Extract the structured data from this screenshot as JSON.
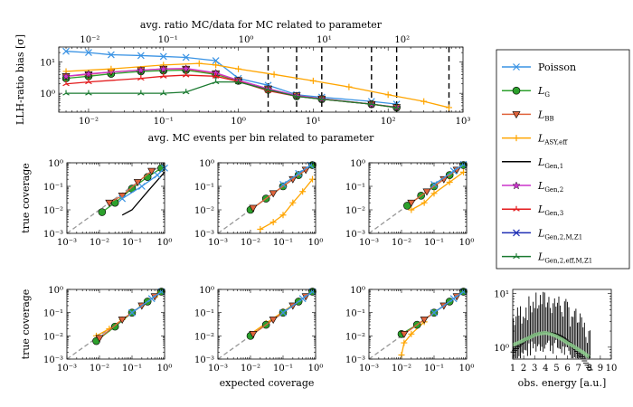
{
  "figure": {
    "legend": [
      {
        "name": "Poisson",
        "sub": "",
        "color": "#3a93e4",
        "marker": "x",
        "lead": ""
      },
      {
        "name": "L",
        "sub": "G",
        "color": "#2ca02c",
        "marker": "circle",
        "lead": ""
      },
      {
        "name": "L",
        "sub": "BB",
        "color": "#e0643c",
        "marker": "triangle-down",
        "lead": ""
      },
      {
        "name": "L",
        "sub": "ASY,eff",
        "color": "#ffa500",
        "marker": "plus",
        "lead": ""
      },
      {
        "name": "L",
        "sub": "Gen,1",
        "color": "#000000",
        "marker": "none",
        "lead": ""
      },
      {
        "name": "L",
        "sub": "Gen,2",
        "color": "#cc33cc",
        "marker": "star",
        "lead": ""
      },
      {
        "name": "L",
        "sub": "Gen,3",
        "color": "#e31a1c",
        "marker": "tri",
        "lead": ""
      },
      {
        "name": "L",
        "sub": "Gen,2,M,Z1",
        "color": "#1f2fb4",
        "marker": "x",
        "lead": ""
      },
      {
        "name": "L",
        "sub": "Gen,2,eff,M,Z1",
        "color": "#1a7a30",
        "marker": "tri",
        "lead": ""
      }
    ]
  },
  "chart_data": [
    {
      "id": "bias",
      "type": "line",
      "xscale": "log",
      "yscale": "log",
      "xlabel": "avg. MC events per bin related to parameter",
      "ylabel": "LLH-ratio bias [σ]",
      "top_xlabel": "avg. ratio MC/data for MC related to parameter",
      "xlim": [
        0.004,
        1000
      ],
      "ylim": [
        0.25,
        30
      ],
      "top_xlim": [
        0.004,
        600
      ],
      "x_ticks": [
        "10⁻²",
        "10⁻¹",
        "10⁰",
        "10¹",
        "10²",
        "10³"
      ],
      "top_x_ticks": [
        "10⁻²",
        "10⁻¹",
        "10⁰",
        "10¹",
        "10²"
      ],
      "y_ticks": [
        "10⁰",
        "10¹"
      ],
      "vlines": [
        2.5,
        6,
        13,
        60,
        130,
        650
      ],
      "series": [
        {
          "name": "Poisson",
          "x": [
            0.005,
            0.01,
            0.02,
            0.05,
            0.1,
            0.2,
            0.5,
            1,
            2.5,
            6,
            13,
            60,
            130
          ],
          "y": [
            22,
            20,
            17,
            16,
            15,
            14,
            11,
            3,
            1.8,
            0.9,
            0.75,
            0.55,
            0.45
          ]
        },
        {
          "name": "L_G",
          "x": [
            0.005,
            0.01,
            0.02,
            0.05,
            0.1,
            0.2,
            0.5,
            1,
            2.5,
            6,
            13,
            60,
            130
          ],
          "y": [
            3,
            3.5,
            4.2,
            5,
            5.3,
            5.5,
            4,
            2.5,
            1.3,
            0.8,
            0.65,
            0.45,
            0.35
          ]
        },
        {
          "name": "L_BB",
          "x": [
            0.005,
            0.01,
            0.02,
            0.05,
            0.1,
            0.2,
            0.5,
            1,
            2.5,
            6,
            13,
            60,
            130
          ],
          "y": [
            3.5,
            4,
            4.8,
            5.5,
            6,
            6,
            4.3,
            2.6,
            1.4,
            0.85,
            0.67,
            0.45,
            0.36
          ]
        },
        {
          "name": "L_ASY,eff",
          "x": [
            0.005,
            0.02,
            0.1,
            0.3,
            0.5,
            1,
            3,
            10,
            30,
            100,
            300,
            650
          ],
          "y": [
            5,
            6,
            8,
            9,
            8,
            6,
            4,
            2.5,
            1.6,
            0.9,
            0.55,
            0.35
          ]
        },
        {
          "name": "L_Gen,2",
          "x": [
            0.005,
            0.01,
            0.05,
            0.1,
            0.2,
            0.5,
            1,
            2.5,
            6,
            13,
            60,
            130
          ],
          "y": [
            3.5,
            4.2,
            5.5,
            6,
            6.2,
            4.5,
            2.6,
            1.4,
            0.85,
            0.67,
            0.45,
            0.36
          ]
        },
        {
          "name": "L_Gen,3",
          "x": [
            0.005,
            0.01,
            0.05,
            0.1,
            0.2,
            0.5,
            1,
            2.5,
            6,
            13,
            60,
            130
          ],
          "y": [
            2,
            2.3,
            3,
            3.5,
            3.8,
            3.5,
            2.4,
            1.2,
            0.8,
            0.65,
            0.45,
            0.35
          ]
        },
        {
          "name": "L_Gen,2,eff,M,Z1",
          "x": [
            0.005,
            0.01,
            0.05,
            0.1,
            0.2,
            0.5,
            1,
            2.5,
            6,
            13,
            60,
            130
          ],
          "y": [
            1,
            1,
            1,
            1,
            1.1,
            2.3,
            2.3,
            1.3,
            0.8,
            0.65,
            0.45,
            0.35
          ]
        }
      ]
    },
    {
      "id": "cov11",
      "type": "scatter",
      "xscale": "log",
      "yscale": "log",
      "xlim": [
        0.001,
        1
      ],
      "ylim": [
        0.001,
        1
      ],
      "ylabel": "true coverage",
      "ticks": [
        "10⁻³",
        "10⁻²",
        "10⁻¹",
        "10⁰"
      ],
      "series": [
        {
          "name": "L_Gen,1",
          "x": [
            0.05,
            0.1,
            0.3,
            1
          ],
          "y": [
            0.006,
            0.01,
            0.06,
            0.4
          ]
        },
        {
          "name": "L_G",
          "x": [
            0.012,
            0.03,
            0.1,
            0.3,
            0.8
          ],
          "y": [
            0.008,
            0.02,
            0.08,
            0.25,
            0.6
          ]
        },
        {
          "name": "L_BB",
          "x": [
            0.02,
            0.05,
            0.15,
            0.4
          ],
          "y": [
            0.02,
            0.04,
            0.15,
            0.45
          ]
        },
        {
          "name": "Poisson",
          "x": [
            0.05,
            0.2,
            0.6,
            1
          ],
          "y": [
            0.03,
            0.1,
            0.3,
            0.6
          ]
        }
      ]
    },
    {
      "id": "cov12",
      "type": "scatter",
      "xscale": "log",
      "yscale": "log",
      "xlim": [
        0.001,
        1
      ],
      "ylim": [
        0.001,
        1
      ],
      "ticks": [
        "10⁻³",
        "10⁻²",
        "10⁻¹",
        "10⁰"
      ],
      "series": [
        {
          "name": "L_ASY,eff",
          "x": [
            0.02,
            0.05,
            0.1,
            0.2,
            0.4,
            0.8
          ],
          "y": [
            0.0015,
            0.003,
            0.006,
            0.02,
            0.06,
            0.2
          ]
        },
        {
          "name": "L_G",
          "x": [
            0.01,
            0.03,
            0.1,
            0.3,
            0.8
          ],
          "y": [
            0.01,
            0.03,
            0.1,
            0.3,
            0.8
          ]
        },
        {
          "name": "L_BB",
          "x": [
            0.012,
            0.05,
            0.2,
            0.5
          ],
          "y": [
            0.012,
            0.05,
            0.2,
            0.5
          ]
        },
        {
          "name": "Poisson",
          "x": [
            0.1,
            0.3,
            0.7
          ],
          "y": [
            0.12,
            0.35,
            0.8
          ]
        }
      ]
    },
    {
      "id": "cov13",
      "type": "scatter",
      "xscale": "log",
      "yscale": "log",
      "xlim": [
        0.001,
        1
      ],
      "ylim": [
        0.001,
        1
      ],
      "ticks": [
        "10⁻³",
        "10⁻²",
        "10⁻¹",
        "10⁰"
      ],
      "series": [
        {
          "name": "L_ASY,eff",
          "x": [
            0.02,
            0.05,
            0.1,
            0.3,
            0.8
          ],
          "y": [
            0.01,
            0.02,
            0.05,
            0.15,
            0.4
          ]
        },
        {
          "name": "L_G",
          "x": [
            0.015,
            0.04,
            0.1,
            0.3,
            0.8
          ],
          "y": [
            0.015,
            0.04,
            0.1,
            0.3,
            0.8
          ]
        },
        {
          "name": "L_BB",
          "x": [
            0.02,
            0.06,
            0.2,
            0.5
          ],
          "y": [
            0.02,
            0.06,
            0.2,
            0.5
          ]
        },
        {
          "name": "Poisson",
          "x": [
            0.1,
            0.4,
            0.8
          ],
          "y": [
            0.12,
            0.45,
            0.85
          ]
        }
      ]
    },
    {
      "id": "cov21",
      "type": "scatter",
      "xscale": "log",
      "yscale": "log",
      "xlim": [
        0.001,
        1
      ],
      "ylim": [
        0.001,
        1
      ],
      "ylabel": "true coverage",
      "ticks": [
        "10⁻³",
        "10⁻²",
        "10⁻¹",
        "10⁰"
      ],
      "series": [
        {
          "name": "L_ASY,eff",
          "x": [
            0.008,
            0.02,
            0.05,
            0.2,
            0.6
          ],
          "y": [
            0.01,
            0.02,
            0.05,
            0.2,
            0.6
          ]
        },
        {
          "name": "L_G",
          "x": [
            0.008,
            0.03,
            0.1,
            0.3,
            0.8
          ],
          "y": [
            0.006,
            0.025,
            0.1,
            0.3,
            0.8
          ]
        },
        {
          "name": "L_BB",
          "x": [
            0.01,
            0.05,
            0.2,
            0.5
          ],
          "y": [
            0.008,
            0.05,
            0.2,
            0.5
          ]
        },
        {
          "name": "Poisson",
          "x": [
            0.1,
            0.4,
            0.8
          ],
          "y": [
            0.1,
            0.4,
            0.8
          ]
        }
      ]
    },
    {
      "id": "cov22",
      "type": "scatter",
      "xscale": "log",
      "yscale": "log",
      "xlim": [
        0.001,
        1
      ],
      "ylim": [
        0.001,
        1
      ],
      "xlabel": "expected coverage",
      "ticks": [
        "10⁻³",
        "10⁻²",
        "10⁻¹",
        "10⁰"
      ],
      "series": [
        {
          "name": "L_ASY,eff",
          "x": [
            0.01,
            0.03,
            0.1,
            0.3
          ],
          "y": [
            0.012,
            0.035,
            0.11,
            0.32
          ]
        },
        {
          "name": "L_G",
          "x": [
            0.01,
            0.03,
            0.1,
            0.3,
            0.8
          ],
          "y": [
            0.01,
            0.03,
            0.1,
            0.3,
            0.8
          ]
        },
        {
          "name": "L_BB",
          "x": [
            0.012,
            0.05,
            0.2,
            0.5
          ],
          "y": [
            0.012,
            0.05,
            0.2,
            0.5
          ]
        },
        {
          "name": "Poisson",
          "x": [
            0.1,
            0.4,
            0.8
          ],
          "y": [
            0.1,
            0.4,
            0.8
          ]
        }
      ]
    },
    {
      "id": "cov23",
      "type": "scatter",
      "xscale": "log",
      "yscale": "log",
      "xlim": [
        0.001,
        1
      ],
      "ylim": [
        0.001,
        1
      ],
      "ticks": [
        "10⁻³",
        "10⁻²",
        "10⁻¹",
        "10⁰"
      ],
      "series": [
        {
          "name": "L_ASY,eff",
          "x": [
            0.01,
            0.012,
            0.02,
            0.05
          ],
          "y": [
            0.0015,
            0.005,
            0.012,
            0.04
          ]
        },
        {
          "name": "L_G",
          "x": [
            0.01,
            0.03,
            0.1,
            0.3,
            0.8
          ],
          "y": [
            0.012,
            0.03,
            0.1,
            0.3,
            0.8
          ]
        },
        {
          "name": "L_BB",
          "x": [
            0.012,
            0.05,
            0.2,
            0.5
          ],
          "y": [
            0.012,
            0.05,
            0.2,
            0.5
          ]
        },
        {
          "name": "Poisson",
          "x": [
            0.1,
            0.4,
            0.8
          ],
          "y": [
            0.1,
            0.4,
            0.8
          ]
        }
      ]
    },
    {
      "id": "energy",
      "type": "line",
      "xscale": "linear",
      "yscale": "log",
      "xlabel": "obs. energy [a.u.]",
      "xlim": [
        1,
        10
      ],
      "ylim": [
        0.6,
        12
      ],
      "x_ticks": [
        "1",
        "2",
        "3",
        "4",
        "5",
        "6",
        "7",
        "8",
        "9",
        "10"
      ],
      "y_ticks": [
        "10⁰",
        "10¹"
      ],
      "series": [
        {
          "name": "spectrum",
          "x": [
            1,
            1.5,
            2,
            2.5,
            3,
            3.5,
            4,
            4.5,
            5,
            5.5,
            6,
            6.5,
            7,
            7.5,
            8
          ],
          "y": [
            1.1,
            1.2,
            1.35,
            1.5,
            1.7,
            1.8,
            1.85,
            1.75,
            1.6,
            1.4,
            1.2,
            1.05,
            0.9,
            0.78,
            0.65
          ]
        }
      ]
    }
  ]
}
